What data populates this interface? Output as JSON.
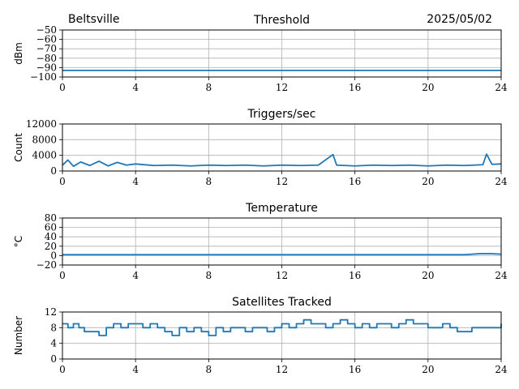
{
  "header": {
    "station": "Beltsville",
    "date": "2025/05/02"
  },
  "colors": {
    "series": "#1f77b4",
    "grid": "#b0b0b0"
  },
  "chart_data": [
    {
      "type": "line",
      "title": "Threshold",
      "ylabel": "dBm",
      "xlim": [
        0,
        24
      ],
      "ylim": [
        -100,
        -50
      ],
      "xticks": [
        0,
        4,
        8,
        12,
        16,
        20,
        24
      ],
      "yticks": [
        -100,
        -90,
        -80,
        -70,
        -60,
        -50
      ],
      "grid": true,
      "series": [
        {
          "x": [
            0,
            1,
            2,
            3,
            4,
            5,
            6,
            7,
            8,
            9,
            10,
            11,
            12,
            13,
            14,
            15,
            16,
            17,
            18,
            19,
            20,
            21,
            22,
            23,
            24
          ],
          "y": [
            -93,
            -93,
            -93,
            -93,
            -93,
            -93,
            -93,
            -93,
            -93,
            -93,
            -93,
            -93,
            -93,
            -93,
            -93,
            -93,
            -93,
            -93,
            -93,
            -93,
            -93,
            -93,
            -93,
            -93,
            -93
          ]
        }
      ]
    },
    {
      "type": "line",
      "title": "Triggers/sec",
      "ylabel": "Count",
      "xlim": [
        0,
        24
      ],
      "ylim": [
        0,
        12000
      ],
      "xticks": [
        0,
        4,
        8,
        12,
        16,
        20,
        24
      ],
      "yticks": [
        0,
        4000,
        8000,
        12000
      ],
      "grid": true,
      "series": [
        {
          "x": [
            0,
            0.3,
            0.6,
            1,
            1.5,
            2,
            2.5,
            3,
            3.5,
            4,
            5,
            6,
            7,
            8,
            9,
            10,
            11,
            12,
            13,
            14,
            14.8,
            15,
            16,
            17,
            18,
            19,
            20,
            21,
            22,
            23,
            23.2,
            23.5,
            24
          ],
          "y": [
            1500,
            2800,
            1200,
            2300,
            1400,
            2500,
            1300,
            2200,
            1500,
            1800,
            1400,
            1500,
            1300,
            1500,
            1400,
            1500,
            1300,
            1500,
            1400,
            1500,
            4200,
            1500,
            1300,
            1500,
            1400,
            1500,
            1300,
            1500,
            1400,
            1600,
            4300,
            1700,
            1800
          ]
        }
      ]
    },
    {
      "type": "line",
      "title": "Temperature",
      "ylabel": "°C",
      "xlim": [
        0,
        24
      ],
      "ylim": [
        -20,
        80
      ],
      "xticks": [
        0,
        4,
        8,
        12,
        16,
        20,
        24
      ],
      "yticks": [
        -20,
        0,
        20,
        40,
        60,
        80
      ],
      "grid": true,
      "series": [
        {
          "x": [
            0,
            2,
            4,
            6,
            8,
            10,
            12,
            14,
            16,
            18,
            20,
            22,
            22.8,
            23.5,
            24
          ],
          "y": [
            2,
            2,
            2,
            2,
            2,
            2,
            2,
            2,
            2,
            2,
            2,
            2,
            4,
            4,
            3
          ]
        }
      ]
    },
    {
      "type": "line",
      "title": "Satellites Tracked",
      "ylabel": "Number",
      "xlim": [
        0,
        24
      ],
      "ylim": [
        0,
        12
      ],
      "xticks": [
        0,
        4,
        8,
        12,
        16,
        20,
        24
      ],
      "yticks": [
        0,
        4,
        8,
        12
      ],
      "grid": true,
      "series": [
        {
          "x": [
            0,
            0.3,
            0.6,
            0.9,
            1.2,
            1.5,
            2,
            2.4,
            2.8,
            3.2,
            3.6,
            4,
            4.4,
            4.8,
            5.2,
            5.6,
            6,
            6.4,
            6.8,
            7.2,
            7.6,
            8,
            8.4,
            8.8,
            9.2,
            9.6,
            10,
            10.4,
            10.8,
            11.2,
            11.6,
            12,
            12.4,
            12.8,
            13.2,
            13.6,
            14,
            14.4,
            14.8,
            15.2,
            15.6,
            16,
            16.4,
            16.8,
            17.2,
            17.6,
            18,
            18.4,
            18.8,
            19.2,
            19.6,
            20,
            20.4,
            20.8,
            21.2,
            21.6,
            22,
            22.4,
            22.8,
            23.2,
            23.6,
            24
          ],
          "y": [
            9,
            8,
            9,
            8,
            7,
            7,
            6,
            8,
            9,
            8,
            9,
            9,
            8,
            9,
            8,
            7,
            6,
            8,
            7,
            8,
            7,
            6,
            8,
            7,
            8,
            8,
            7,
            8,
            8,
            7,
            8,
            9,
            8,
            9,
            10,
            9,
            9,
            8,
            9,
            10,
            9,
            8,
            9,
            8,
            9,
            9,
            8,
            9,
            10,
            9,
            9,
            8,
            8,
            9,
            8,
            7,
            7,
            8,
            8,
            8,
            8,
            9
          ]
        }
      ]
    }
  ]
}
